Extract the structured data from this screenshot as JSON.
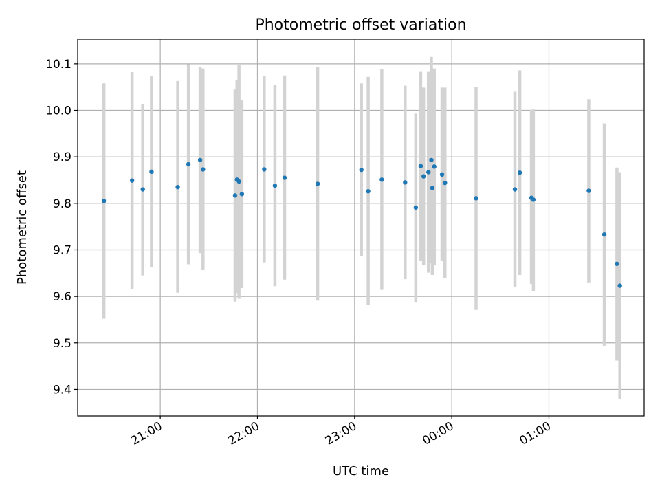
{
  "chart_data": {
    "type": "scatter",
    "title": "Photometric offset variation",
    "xlabel": "UTC time",
    "ylabel": "Photometric offset",
    "x_unit": "hours (UTC clock, values past 24 wrap to next day)",
    "xlim": [
      20.15,
      25.98
    ],
    "ylim": [
      9.343,
      10.153
    ],
    "grid": true,
    "legend": "none",
    "colors": {
      "point": "#1f77b4",
      "errorbar": "#d3d3d3",
      "grid": "#b0b0b0"
    },
    "xticks": [
      {
        "value": 21,
        "label": "21:00"
      },
      {
        "value": 22,
        "label": "22:00"
      },
      {
        "value": 23,
        "label": "23:00"
      },
      {
        "value": 24,
        "label": "00:00"
      },
      {
        "value": 25,
        "label": "01:00"
      }
    ],
    "yticks": [
      {
        "value": 9.4,
        "label": "9.4"
      },
      {
        "value": 9.5,
        "label": "9.5"
      },
      {
        "value": 9.6,
        "label": "9.6"
      },
      {
        "value": 9.7,
        "label": "9.7"
      },
      {
        "value": 9.8,
        "label": "9.8"
      },
      {
        "value": 9.9,
        "label": "9.9"
      },
      {
        "value": 10.0,
        "label": "10.0"
      },
      {
        "value": 10.1,
        "label": "10.1"
      }
    ],
    "points": [
      {
        "x": 20.42,
        "y": 9.805,
        "ylo": 9.552,
        "yhi": 10.058
      },
      {
        "x": 20.71,
        "y": 9.849,
        "ylo": 9.615,
        "yhi": 10.082
      },
      {
        "x": 20.82,
        "y": 9.83,
        "ylo": 9.645,
        "yhi": 10.014
      },
      {
        "x": 20.91,
        "y": 9.868,
        "ylo": 9.663,
        "yhi": 10.073
      },
      {
        "x": 21.18,
        "y": 9.835,
        "ylo": 9.608,
        "yhi": 10.063
      },
      {
        "x": 21.29,
        "y": 9.884,
        "ylo": 9.669,
        "yhi": 10.099
      },
      {
        "x": 21.41,
        "y": 9.893,
        "ylo": 9.693,
        "yhi": 10.094
      },
      {
        "x": 21.44,
        "y": 9.873,
        "ylo": 9.657,
        "yhi": 10.09
      },
      {
        "x": 21.77,
        "y": 9.817,
        "ylo": 9.589,
        "yhi": 10.045
      },
      {
        "x": 21.79,
        "y": 9.851,
        "ylo": 9.607,
        "yhi": 10.066
      },
      {
        "x": 21.81,
        "y": 9.847,
        "ylo": 9.595,
        "yhi": 10.097
      },
      {
        "x": 21.84,
        "y": 9.82,
        "ylo": 9.618,
        "yhi": 10.022
      },
      {
        "x": 22.07,
        "y": 9.873,
        "ylo": 9.673,
        "yhi": 10.073
      },
      {
        "x": 22.18,
        "y": 9.838,
        "ylo": 9.622,
        "yhi": 10.054
      },
      {
        "x": 22.28,
        "y": 9.855,
        "ylo": 9.636,
        "yhi": 10.075
      },
      {
        "x": 22.62,
        "y": 9.842,
        "ylo": 9.591,
        "yhi": 10.093
      },
      {
        "x": 23.07,
        "y": 9.872,
        "ylo": 9.686,
        "yhi": 10.058
      },
      {
        "x": 23.14,
        "y": 9.826,
        "ylo": 9.581,
        "yhi": 10.072
      },
      {
        "x": 23.28,
        "y": 9.851,
        "ylo": 9.614,
        "yhi": 10.088
      },
      {
        "x": 23.52,
        "y": 9.845,
        "ylo": 9.637,
        "yhi": 10.053
      },
      {
        "x": 23.63,
        "y": 9.791,
        "ylo": 9.588,
        "yhi": 9.993
      },
      {
        "x": 23.68,
        "y": 9.88,
        "ylo": 9.676,
        "yhi": 10.084
      },
      {
        "x": 23.71,
        "y": 9.858,
        "ylo": 9.668,
        "yhi": 10.049
      },
      {
        "x": 23.76,
        "y": 9.867,
        "ylo": 9.651,
        "yhi": 10.084
      },
      {
        "x": 23.79,
        "y": 9.893,
        "ylo": 9.671,
        "yhi": 10.115
      },
      {
        "x": 23.8,
        "y": 9.833,
        "ylo": 9.646,
        "yhi": 10.02
      },
      {
        "x": 23.82,
        "y": 9.879,
        "ylo": 9.667,
        "yhi": 10.09
      },
      {
        "x": 23.9,
        "y": 9.862,
        "ylo": 9.676,
        "yhi": 10.049
      },
      {
        "x": 23.93,
        "y": 9.844,
        "ylo": 9.639,
        "yhi": 10.049
      },
      {
        "x": 24.25,
        "y": 9.811,
        "ylo": 9.571,
        "yhi": 10.051
      },
      {
        "x": 24.65,
        "y": 9.83,
        "ylo": 9.62,
        "yhi": 10.04
      },
      {
        "x": 24.7,
        "y": 9.866,
        "ylo": 9.646,
        "yhi": 10.086
      },
      {
        "x": 24.82,
        "y": 9.812,
        "ylo": 9.627,
        "yhi": 10.001
      },
      {
        "x": 24.84,
        "y": 9.808,
        "ylo": 9.612,
        "yhi": 10.002
      },
      {
        "x": 25.41,
        "y": 9.827,
        "ylo": 9.63,
        "yhi": 10.024
      },
      {
        "x": 25.57,
        "y": 9.733,
        "ylo": 9.494,
        "yhi": 9.972
      },
      {
        "x": 25.7,
        "y": 9.67,
        "ylo": 9.462,
        "yhi": 9.877
      },
      {
        "x": 25.73,
        "y": 9.623,
        "ylo": 9.379,
        "yhi": 9.867
      }
    ]
  }
}
